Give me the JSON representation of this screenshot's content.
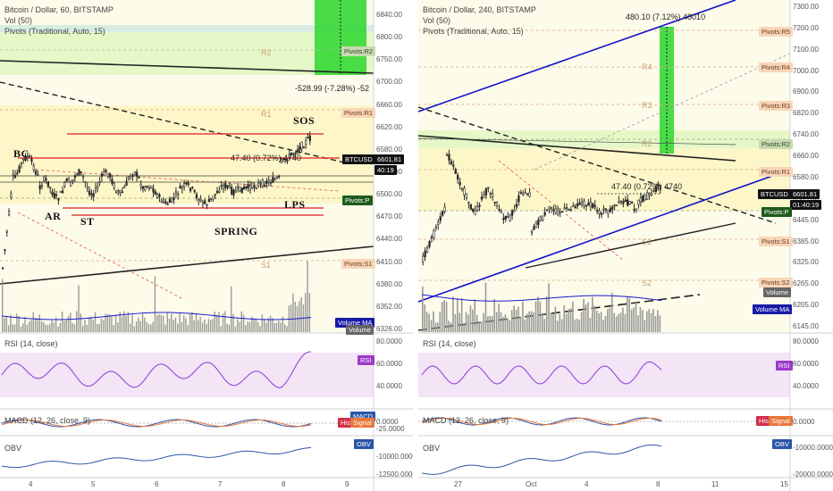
{
  "left": {
    "title": "Bitcoin / Dollar, 60, BITSTAMP",
    "vol": "Vol (50)",
    "pivots": "Pivots (Traditional, Auto, 15)",
    "price_labels": [
      "6840.00",
      "6800.00",
      "6750.00",
      "6700.00",
      "6660.00",
      "6620.00",
      "6580.00",
      "6540.00",
      "6500.00",
      "6470.00",
      "6440.00",
      "6410.00",
      "6380.00",
      "6352.00",
      "6326.00"
    ],
    "rsi_labels": [
      "80.0000",
      "60.0000",
      "40.0000"
    ],
    "macd_labels": [
      "0.0000",
      "-25.0000"
    ],
    "obv_labels": [
      "-10000.0000",
      "-12500.0000"
    ],
    "date_labels": [
      "4",
      "5",
      "6",
      "7",
      "8",
      "9"
    ],
    "measure_top": "-528.99 (-7.28%) -52",
    "measure_mid": "47.40 (0.72%) 4740",
    "pivot_r2": "Pivots:R2",
    "pivot_r1": "Pivots:R1",
    "pivot_p": "Pivots:P",
    "pivot_s1": "Pivots:S1",
    "btcusd": "BTCUSD",
    "price": "6601.81",
    "countdown": "40:19",
    "volume_ma": "Volume MA",
    "volume": "Volume",
    "rsi_tag": "RSI",
    "macd_tag": "MACD",
    "his_tag": "His",
    "signal_tag": "Signal",
    "obv_tag": "OBV",
    "rsi_legend": "RSI (14, close)",
    "macd_legend": "MACD (12, 26, close, 9)",
    "obv_legend": "OBV",
    "r2_faint": "R2",
    "r1_faint": "R1",
    "s1_faint": "S1",
    "wyckoff": {
      "bc": "BC",
      "ar": "AR",
      "st": "ST",
      "spring": "SPRING",
      "lps": "LPS",
      "sos": "SOS"
    }
  },
  "right": {
    "title": "Bitcoin / Dollar, 240, BITSTAMP",
    "vol": "Vol (50)",
    "pivots": "Pivots (Traditional, Auto, 15)",
    "price_labels": [
      "7300.00",
      "7200.00",
      "7100.00",
      "7000.00",
      "6900.00",
      "6820.00",
      "6740.00",
      "6660.00",
      "6580.00",
      "6505.00",
      "6445.00",
      "6385.00",
      "6325.00",
      "6265.00",
      "6205.00",
      "6145.00"
    ],
    "rsi_labels": [
      "80.0000",
      "60.0000",
      "40.0000"
    ],
    "macd_labels": [
      "0.0000"
    ],
    "obv_labels": [
      "-10000.0000",
      "-20000.0000"
    ],
    "date_labels": [
      "27",
      "Oct",
      "4",
      "8",
      "11",
      "15"
    ],
    "measure_top": "480.10 (7.12%) 48010",
    "measure_mid": "47.40 (0.72%) 4740",
    "pivot_r5": "Pivots:R5",
    "pivot_r4": "Pivots:R4",
    "pivot_r3": "Pivots:R3",
    "pivot_r2": "Pivots:R2",
    "pivot_r1": "Pivots:R1",
    "pivot_p": "Pivots:P",
    "pivot_s1": "Pivots:S1",
    "pivot_s2": "Pivots:S2",
    "btcusd": "BTCUSD",
    "price": "6601.81",
    "countdown": "01:40:19",
    "volume_ma": "Volume MA",
    "volume": "Volume",
    "rsi_tag": "RSI",
    "his_tag": "His",
    "signal_tag": "Signal",
    "obv_tag": "OBV",
    "rsi_legend": "RSI (14, close)",
    "macd_legend": "MACD (12, 26, close, 9)",
    "obv_legend": "OBV",
    "r4_faint": "R4",
    "r3_faint": "R3",
    "r2_faint": "R2",
    "s1_faint": "S1",
    "s2_faint": "S2"
  },
  "colors": {
    "up": "#2b2b2b",
    "down": "#2b2b2b",
    "rsi": "#8a3ad8",
    "macd": "#2a56a8",
    "signal": "#e8773a",
    "obv": "#2a56a8",
    "trend_blue": "#1212c8",
    "resistance_red": "#e02020",
    "zone_green": "#36d836",
    "zone_yellow": "#fdf6c8"
  }
}
